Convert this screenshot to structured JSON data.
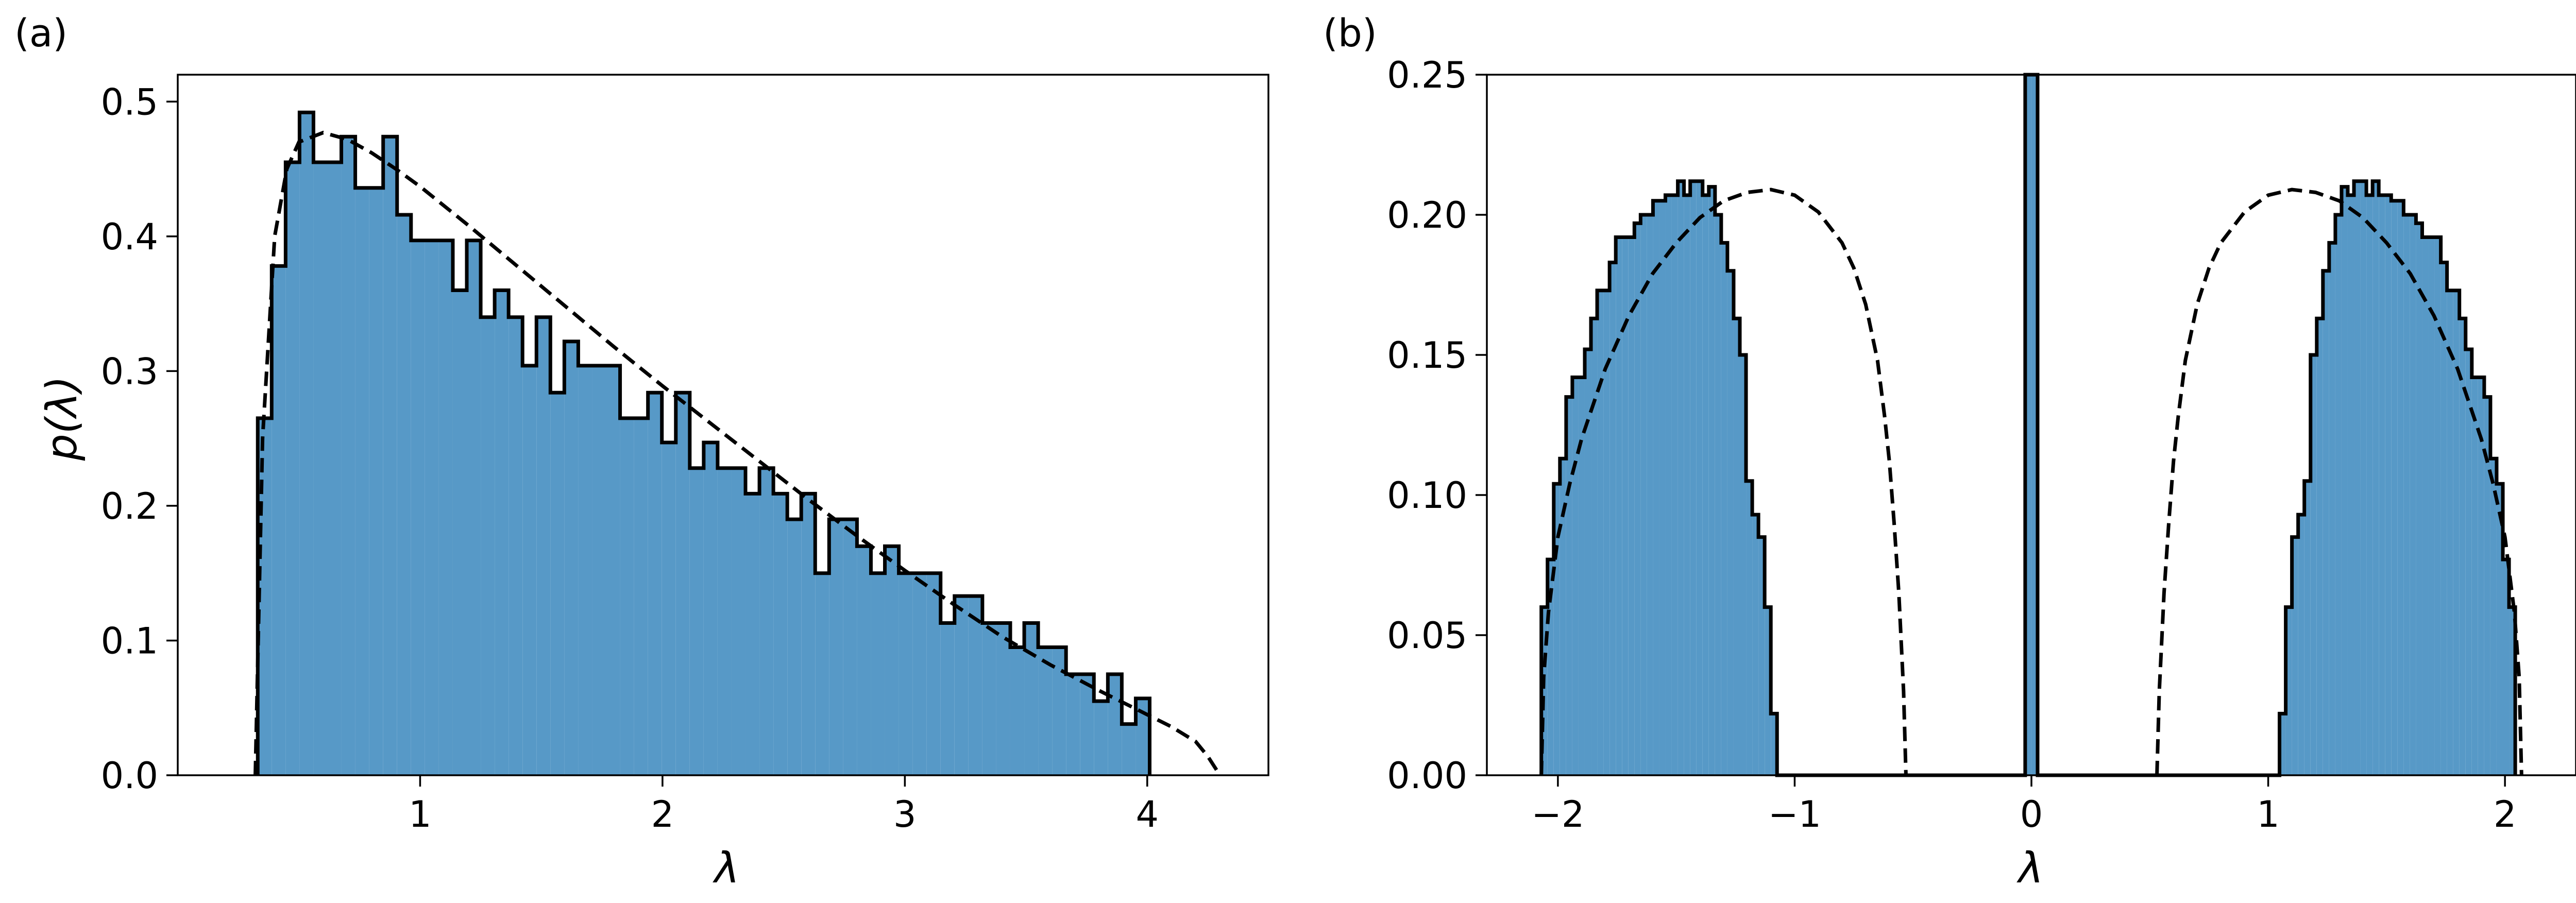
{
  "chart_data": [
    {
      "type": "histogram",
      "panel_label": "(a)",
      "xlabel": "λ",
      "ylabel": "p(λ)",
      "xlim": [
        0.0,
        4.5
      ],
      "ylim": [
        0.0,
        0.52
      ],
      "xticks": [
        1,
        2,
        3,
        4
      ],
      "yticks": [
        0.0,
        0.1,
        0.2,
        0.3,
        0.4,
        0.5
      ],
      "ytick_labels": [
        "0.0",
        "0.1",
        "0.2",
        "0.3",
        "0.4",
        "0.5"
      ],
      "xtick_labels": [
        "1",
        "2",
        "3",
        "4"
      ],
      "grid": false,
      "bars": {
        "color": "#5799c7",
        "edge_color": "#000000",
        "bin_start": 0.33,
        "bin_width": 0.0575,
        "values": [
          0.265,
          0.378,
          0.455,
          0.492,
          0.455,
          0.455,
          0.474,
          0.436,
          0.436,
          0.474,
          0.416,
          0.397,
          0.397,
          0.397,
          0.36,
          0.397,
          0.34,
          0.36,
          0.34,
          0.304,
          0.34,
          0.284,
          0.322,
          0.304,
          0.304,
          0.304,
          0.265,
          0.265,
          0.284,
          0.247,
          0.284,
          0.228,
          0.247,
          0.228,
          0.228,
          0.209,
          0.228,
          0.209,
          0.19,
          0.209,
          0.15,
          0.19,
          0.19,
          0.17,
          0.15,
          0.17,
          0.15,
          0.15,
          0.15,
          0.113,
          0.133,
          0.133,
          0.113,
          0.113,
          0.095,
          0.113,
          0.095,
          0.095,
          0.075,
          0.075,
          0.055,
          0.075,
          0.038,
          0.057
        ]
      },
      "density_curve": {
        "style": "dashed",
        "color": "#000000",
        "x": [
          0.32,
          0.35,
          0.4,
          0.45,
          0.5,
          0.6,
          0.7,
          0.8,
          0.9,
          1.0,
          1.2,
          1.4,
          1.6,
          1.8,
          2.0,
          2.2,
          2.4,
          2.6,
          2.8,
          3.0,
          3.2,
          3.4,
          3.6,
          3.8,
          4.0,
          4.1,
          4.2,
          4.25,
          4.3
        ],
        "y": [
          0.0,
          0.25,
          0.4,
          0.45,
          0.47,
          0.477,
          0.472,
          0.462,
          0.45,
          0.437,
          0.408,
          0.378,
          0.348,
          0.318,
          0.289,
          0.261,
          0.233,
          0.205,
          0.178,
          0.152,
          0.127,
          0.103,
          0.082,
          0.063,
          0.045,
          0.036,
          0.025,
          0.014,
          0.0
        ]
      }
    },
    {
      "type": "histogram",
      "panel_label": "(b)",
      "xlabel": "λ",
      "ylabel": "",
      "xlim": [
        -2.3,
        2.3
      ],
      "ylim": [
        0.0,
        0.25
      ],
      "xticks": [
        -2,
        -1,
        0,
        1,
        2
      ],
      "xtick_labels": [
        "−2",
        "−1",
        "0",
        "1",
        "2"
      ],
      "yticks": [
        0.0,
        0.05,
        0.1,
        0.15,
        0.2,
        0.25
      ],
      "ytick_labels": [
        "0.00",
        "0.05",
        "0.10",
        "0.15",
        "0.20",
        "0.25"
      ],
      "grid": false,
      "bars": {
        "color": "#5799c7",
        "edge_color": "#000000",
        "bin_start": -2.07,
        "bin_width": 0.0262,
        "values": [
          0.06,
          0.077,
          0.104,
          0.113,
          0.135,
          0.142,
          0.142,
          0.152,
          0.163,
          0.173,
          0.173,
          0.183,
          0.192,
          0.192,
          0.192,
          0.197,
          0.2,
          0.2,
          0.205,
          0.205,
          0.207,
          0.207,
          0.212,
          0.207,
          0.212,
          0.212,
          0.207,
          0.21,
          0.2,
          0.19,
          0.18,
          0.163,
          0.15,
          0.105,
          0.093,
          0.085,
          0.06,
          0.022,
          0.0,
          0.0,
          0.0,
          0.0,
          0.0,
          0.0,
          0.0,
          0.0,
          0.0,
          0.0,
          0.0,
          0.0,
          0.0,
          0.0,
          0.0,
          0.0,
          0.0,
          0.0,
          0.0,
          0.0,
          0.0,
          0.0,
          0.0,
          0.0,
          0.0,
          0.0,
          0.0,
          0.0,
          0.0,
          0.0,
          0.0,
          0.0,
          0.0,
          0.0,
          0.0,
          0.0,
          0.0,
          0.0,
          0.0,
          0.0,
          0.25,
          0.25,
          0.0,
          0.0,
          0.0,
          0.0,
          0.0,
          0.0,
          0.0,
          0.0,
          0.0,
          0.0,
          0.0,
          0.0,
          0.0,
          0.0,
          0.0,
          0.0,
          0.0,
          0.0,
          0.0,
          0.0,
          0.0,
          0.0,
          0.0,
          0.0,
          0.0,
          0.0,
          0.0,
          0.0,
          0.0,
          0.0,
          0.0,
          0.0,
          0.0,
          0.0,
          0.0,
          0.0,
          0.0,
          0.0,
          0.0,
          0.022,
          0.06,
          0.085,
          0.093,
          0.105,
          0.15,
          0.163,
          0.18,
          0.19,
          0.2,
          0.21,
          0.207,
          0.212,
          0.212,
          0.207,
          0.212,
          0.207,
          0.207,
          0.205,
          0.205,
          0.2,
          0.2,
          0.197,
          0.192,
          0.192,
          0.192,
          0.183,
          0.173,
          0.173,
          0.163,
          0.152,
          0.142,
          0.142,
          0.135,
          0.113,
          0.104,
          0.077,
          0.06
        ]
      },
      "density_curve": {
        "style": "dashed",
        "color": "#000000",
        "segments": [
          {
            "x": [
              -2.07,
              -2.06,
              -2.04,
              -2.0,
              -1.95,
              -1.9,
              -1.8,
              -1.7,
              -1.6,
              -1.5,
              -1.4,
              -1.3,
              -1.2,
              -1.1,
              -1.0,
              -0.9,
              -0.8,
              -0.75,
              -0.7,
              -0.65,
              -0.62,
              -0.6,
              -0.58,
              -0.56,
              -0.54,
              -0.53
            ],
            "y": [
              0.0,
              0.035,
              0.058,
              0.085,
              0.104,
              0.12,
              0.145,
              0.164,
              0.179,
              0.19,
              0.199,
              0.205,
              0.208,
              0.209,
              0.207,
              0.201,
              0.19,
              0.181,
              0.168,
              0.148,
              0.128,
              0.112,
              0.09,
              0.065,
              0.03,
              0.0
            ]
          },
          {
            "x": [
              0.53,
              0.54,
              0.56,
              0.58,
              0.6,
              0.62,
              0.65,
              0.7,
              0.75,
              0.8,
              0.9,
              1.0,
              1.1,
              1.2,
              1.3,
              1.4,
              1.5,
              1.6,
              1.7,
              1.8,
              1.9,
              1.95,
              2.0,
              2.04,
              2.06,
              2.07
            ],
            "y": [
              0.0,
              0.03,
              0.065,
              0.09,
              0.112,
              0.128,
              0.148,
              0.168,
              0.181,
              0.19,
              0.201,
              0.207,
              0.209,
              0.208,
              0.205,
              0.199,
              0.19,
              0.179,
              0.164,
              0.145,
              0.12,
              0.104,
              0.085,
              0.058,
              0.035,
              0.0
            ]
          }
        ]
      }
    }
  ]
}
